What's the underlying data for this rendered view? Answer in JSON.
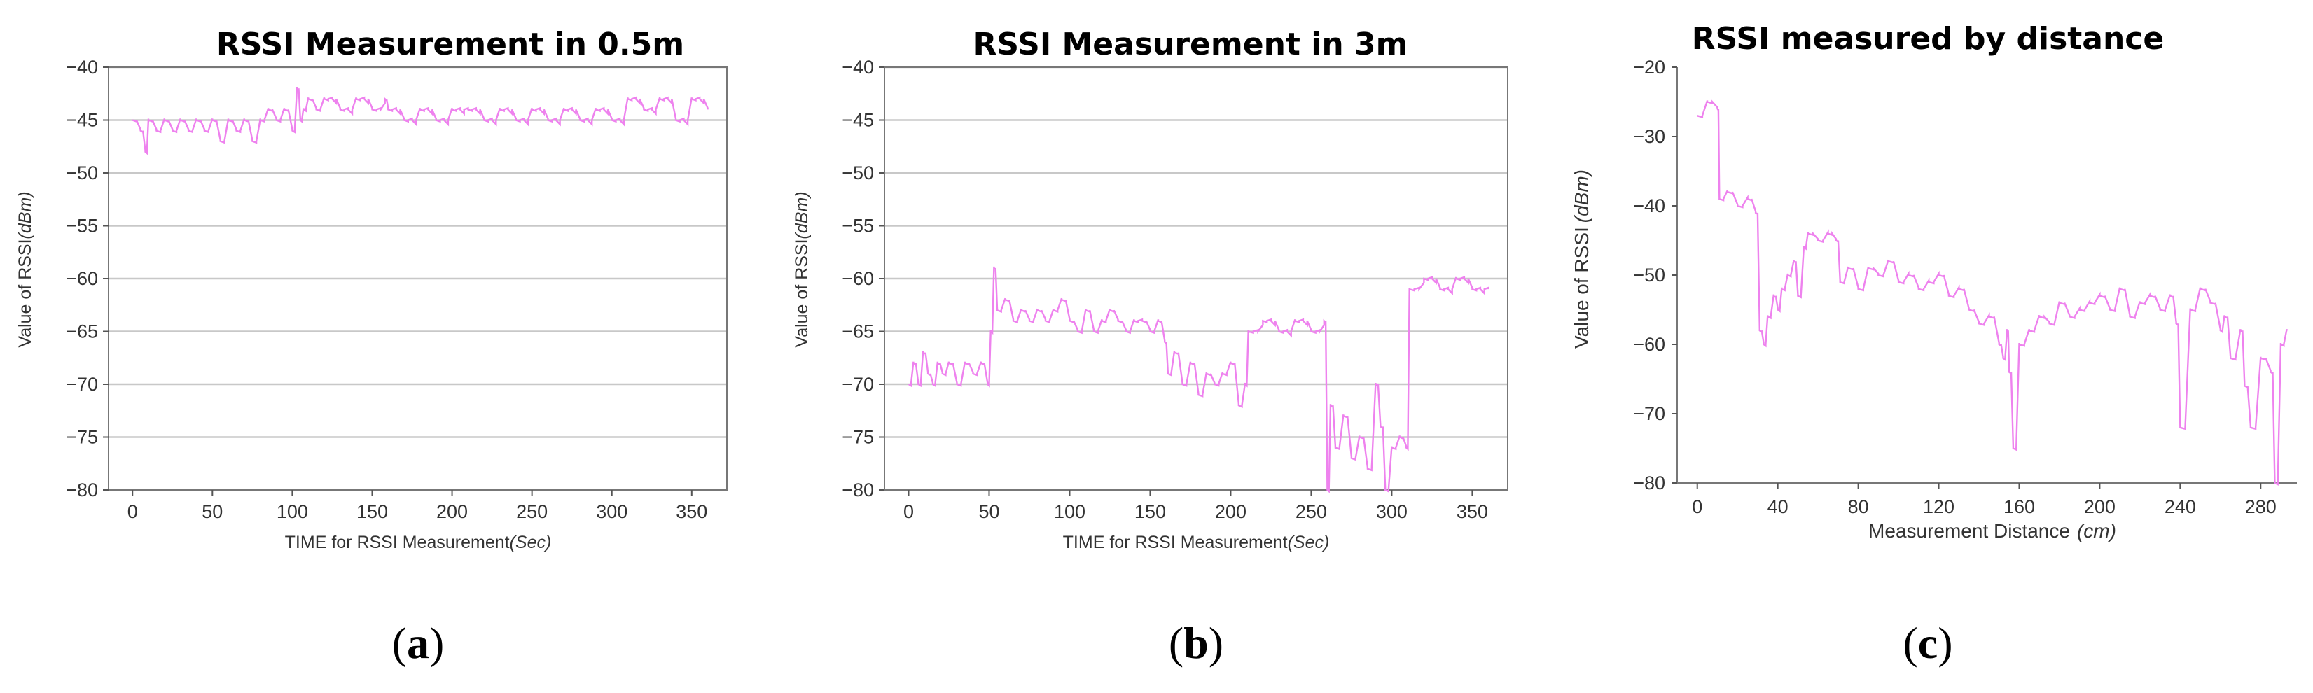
{
  "chart_data": [
    {
      "type": "line",
      "panel_label": "a",
      "title": "RSSI Measurement in 0.5m",
      "xlabel": "TIME for RSSI Measurement",
      "xlabel_unit": "(Sec)",
      "ylabel": "Value of RSSI",
      "ylabel_unit": "(dBm)",
      "xlim": [
        -15,
        372
      ],
      "ylim": [
        -80,
        -40
      ],
      "xticks": [
        0,
        50,
        100,
        150,
        200,
        250,
        300,
        350
      ],
      "yticks": [
        -40,
        -45,
        -50,
        -55,
        -60,
        -65,
        -70,
        -75,
        -80
      ],
      "grid": "horizontal",
      "color": "#ee82ee",
      "series": [
        {
          "x": [
            0,
            5,
            8,
            10,
            15,
            20,
            25,
            30,
            35,
            40,
            45,
            50,
            55,
            60,
            65,
            70,
            75,
            80,
            85,
            90,
            95,
            100,
            103,
            105,
            107,
            110,
            115,
            120,
            130,
            140,
            150,
            158,
            160,
            170,
            180,
            190,
            200,
            210,
            220,
            230,
            240,
            250,
            260,
            270,
            280,
            290,
            300,
            310,
            320,
            330,
            340,
            350,
            360
          ],
          "y": [
            -45,
            -46,
            -48,
            -45,
            -46,
            -45,
            -46,
            -45,
            -46,
            -45,
            -46,
            -45,
            -47,
            -45,
            -46,
            -45,
            -47,
            -45,
            -44,
            -45,
            -44,
            -46,
            -42,
            -45,
            -44,
            -43,
            -44,
            -43,
            -44,
            -43,
            -44,
            -43,
            -44,
            -45,
            -44,
            -45,
            -44,
            -44,
            -45,
            -44,
            -45,
            -44,
            -45,
            -44,
            -45,
            -44,
            -45,
            -43,
            -44,
            -43,
            -45,
            -43,
            -44
          ]
        }
      ]
    },
    {
      "type": "line",
      "panel_label": "b",
      "title": "RSSI Measurement in 3m",
      "xlabel": "TIME for RSSI Measurement",
      "xlabel_unit": "(Sec)",
      "ylabel": "Value of RSSI",
      "ylabel_unit": "(dBm)",
      "xlim": [
        -15,
        372
      ],
      "ylim": [
        -80,
        -40
      ],
      "xticks": [
        0,
        50,
        100,
        150,
        200,
        250,
        300,
        350
      ],
      "yticks": [
        -40,
        -45,
        -50,
        -55,
        -60,
        -65,
        -70,
        -75,
        -80
      ],
      "grid": "horizontal",
      "color": "#ee82ee",
      "series": [
        {
          "x": [
            0,
            3,
            6,
            9,
            12,
            15,
            18,
            21,
            25,
            30,
            35,
            40,
            45,
            49,
            51,
            53,
            55,
            60,
            65,
            70,
            75,
            80,
            85,
            90,
            95,
            100,
            105,
            110,
            115,
            120,
            125,
            130,
            135,
            140,
            145,
            150,
            155,
            159,
            161,
            165,
            170,
            175,
            180,
            185,
            190,
            195,
            200,
            205,
            209,
            211,
            220,
            230,
            240,
            250,
            258,
            260,
            262,
            265,
            270,
            275,
            280,
            285,
            290,
            293,
            296,
            300,
            305,
            309,
            311,
            320,
            330,
            340,
            350,
            360
          ],
          "y": [
            -70,
            -68,
            -70,
            -67,
            -69,
            -70,
            -68,
            -69,
            -68,
            -70,
            -68,
            -69,
            -68,
            -70,
            -65,
            -59,
            -63,
            -62,
            -64,
            -63,
            -64,
            -63,
            -64,
            -63,
            -62,
            -64,
            -65,
            -63,
            -65,
            -64,
            -63,
            -64,
            -65,
            -64,
            -64,
            -65,
            -64,
            -66,
            -69,
            -67,
            -70,
            -68,
            -71,
            -69,
            -70,
            -69,
            -68,
            -72,
            -70,
            -65,
            -64,
            -65,
            -64,
            -65,
            -64,
            -80,
            -72,
            -76,
            -73,
            -77,
            -75,
            -78,
            -70,
            -74,
            -80,
            -76,
            -75,
            -76,
            -61,
            -60,
            -61,
            -60,
            -61,
            -61
          ]
        }
      ]
    },
    {
      "type": "line",
      "panel_label": "c",
      "title": "RSSI measured by distance",
      "xlabel": "Measurement Distance",
      "xlabel_unit": "(cm)",
      "ylabel": "Value of RSSI",
      "ylabel_unit": "(dBm)",
      "xlim": [
        -10,
        298
      ],
      "ylim": [
        -80,
        -20
      ],
      "xticks": [
        0,
        40,
        80,
        120,
        160,
        200,
        240,
        280
      ],
      "yticks": [
        -20,
        -30,
        -40,
        -50,
        -60,
        -70,
        -80
      ],
      "grid": "none",
      "color": "#ee82ee",
      "series": [
        {
          "x": [
            0,
            5,
            10,
            11,
            15,
            20,
            25,
            29,
            31,
            33,
            35,
            38,
            40,
            42,
            45,
            48,
            50,
            53,
            55,
            60,
            65,
            69,
            71,
            75,
            80,
            85,
            90,
            95,
            100,
            105,
            110,
            115,
            120,
            125,
            130,
            135,
            140,
            145,
            150,
            152,
            154,
            155,
            157,
            160,
            165,
            170,
            175,
            180,
            185,
            190,
            195,
            200,
            205,
            210,
            215,
            220,
            225,
            230,
            235,
            238,
            240,
            245,
            250,
            255,
            260,
            262,
            265,
            270,
            272,
            275,
            280,
            285,
            287,
            290,
            293
          ],
          "y": [
            -27,
            -25,
            -26,
            -39,
            -38,
            -40,
            -39,
            -41,
            -58,
            -60,
            -56,
            -53,
            -55,
            -52,
            -50,
            -48,
            -53,
            -46,
            -44,
            -45,
            -44,
            -45,
            -51,
            -49,
            -52,
            -49,
            -50,
            -48,
            -51,
            -50,
            -52,
            -51,
            -50,
            -53,
            -52,
            -55,
            -57,
            -56,
            -60,
            -62,
            -58,
            -64,
            -75,
            -60,
            -58,
            -56,
            -57,
            -54,
            -56,
            -55,
            -54,
            -53,
            -55,
            -52,
            -56,
            -54,
            -53,
            -55,
            -53,
            -57,
            -72,
            -55,
            -52,
            -54,
            -58,
            -56,
            -62,
            -58,
            -66,
            -72,
            -62,
            -64,
            -80,
            -60,
            -58
          ]
        }
      ]
    }
  ]
}
